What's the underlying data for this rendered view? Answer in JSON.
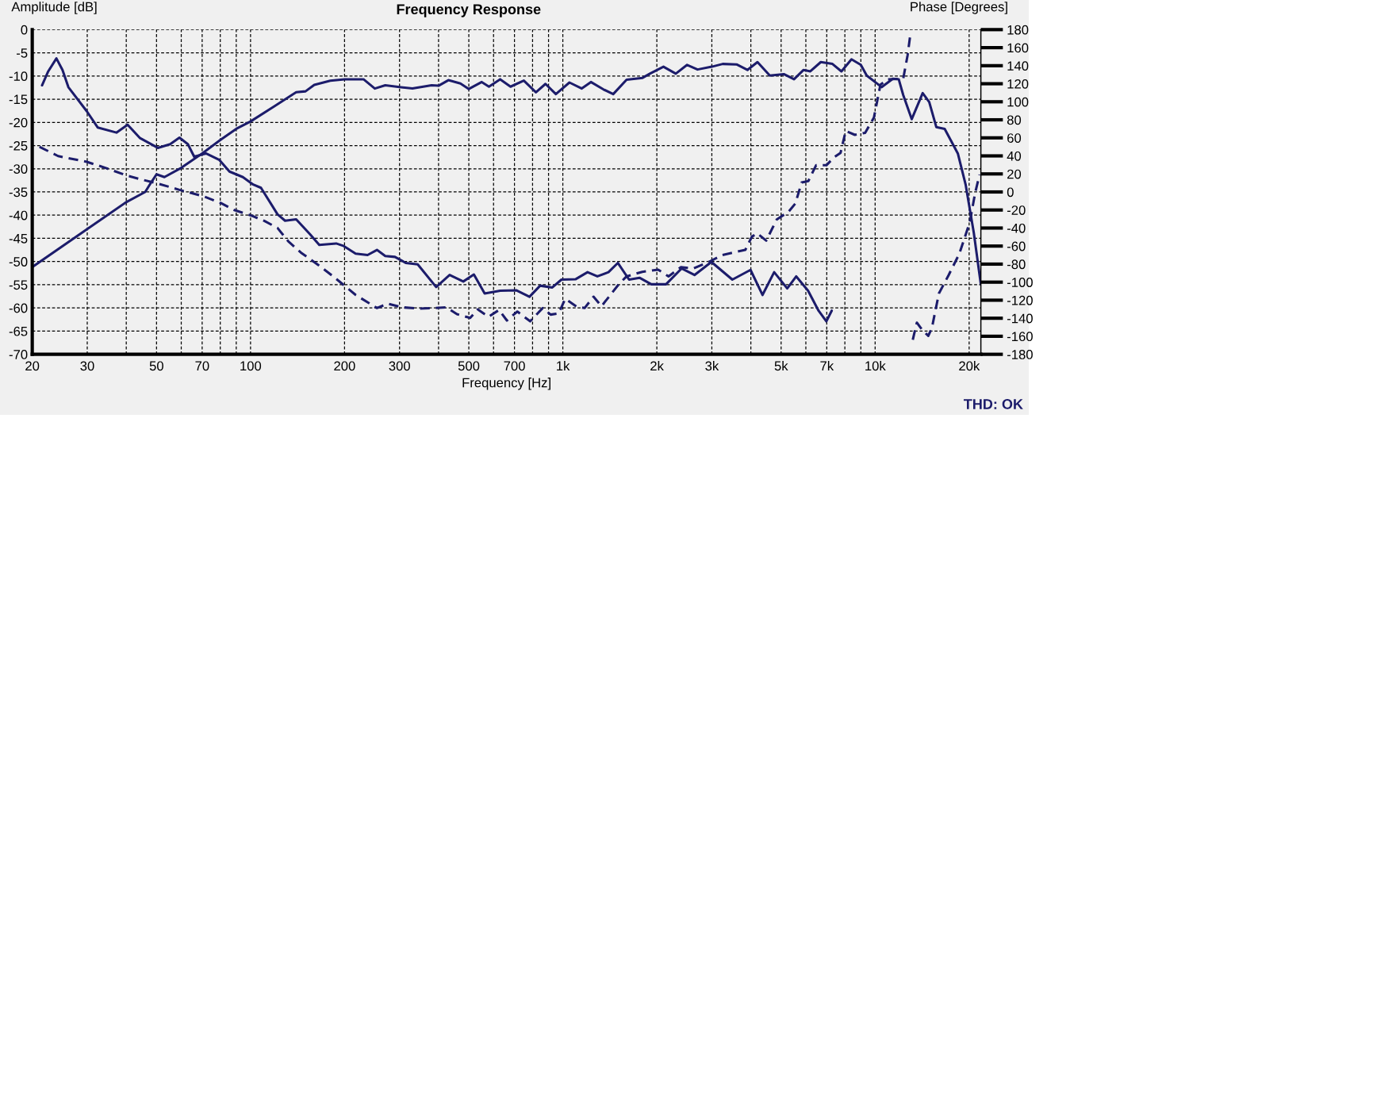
{
  "chart_data": {
    "type": "line",
    "title": "Frequency Response",
    "xlabel": "Frequency [Hz]",
    "ylabel": "Amplitude [dB]",
    "y2label": "Phase [Degrees]",
    "annotations": [
      "THD: OK"
    ],
    "log": "x",
    "grid": true,
    "xlim": [
      20,
      21800
    ],
    "xticks": [
      20,
      30,
      {
        "value": 40,
        "label": null
      },
      50,
      {
        "value": 60,
        "label": null
      },
      70,
      {
        "value": 80,
        "label": null
      },
      {
        "value": 90,
        "label": null
      },
      100,
      200,
      300,
      {
        "value": 400,
        "label": null
      },
      500,
      {
        "value": 600,
        "label": null
      },
      700,
      {
        "value": 800,
        "label": null
      },
      {
        "value": 900,
        "label": null
      },
      {
        "value": 1000,
        "label": "1k"
      },
      {
        "value": 2000,
        "label": "2k"
      },
      {
        "value": 3000,
        "label": "3k"
      },
      {
        "value": 4000,
        "label": null
      },
      {
        "value": 5000,
        "label": "5k"
      },
      {
        "value": 6000,
        "label": null
      },
      {
        "value": 7000,
        "label": "7k"
      },
      {
        "value": 8000,
        "label": null
      },
      {
        "value": 9000,
        "label": null
      },
      {
        "value": 10000,
        "label": "10k"
      },
      {
        "value": 20000,
        "label": "20k"
      }
    ],
    "ylim": [
      -70,
      0
    ],
    "yticks": [
      -70,
      -65,
      -60,
      -55,
      -50,
      -45,
      -40,
      -35,
      -30,
      -25,
      -20,
      -15,
      -10,
      -5,
      0
    ],
    "y2lim": [
      -180,
      180
    ],
    "y2ticks": [
      -180,
      -160,
      -140,
      -120,
      -100,
      -80,
      -60,
      -40,
      -20,
      0,
      20,
      40,
      60,
      80,
      100,
      120,
      140,
      160,
      180
    ],
    "series": [
      {
        "color": "#1c1c6b",
        "line_style": "solid",
        "x": [
          20,
          30,
          40,
          46,
          48,
          50,
          53,
          60,
          70,
          80,
          90,
          100,
          120,
          140,
          150,
          160,
          180,
          200,
          230,
          250,
          270,
          300,
          330,
          380,
          400,
          430,
          470,
          500,
          550,
          580,
          630,
          680,
          750,
          820,
          880,
          950,
          1050,
          1150,
          1230,
          1350,
          1450,
          1600,
          1800,
          1900,
          2100,
          2300,
          2500,
          2700,
          3000,
          3250,
          3600,
          3900,
          4200,
          4600,
          5100,
          5500,
          5900,
          6200,
          6700,
          7300,
          7800,
          8400,
          9000,
          9400,
          10500,
          11400,
          11900,
          12300,
          13100,
          14200,
          14900,
          15700,
          16700,
          18400,
          19500,
          20700,
          21800
        ],
        "values": [
          -51.2,
          -43,
          -37.2,
          -35,
          -33,
          -31.2,
          -31.8,
          -29.8,
          -26.7,
          -23.8,
          -21.4,
          -19.8,
          -16.4,
          -13.5,
          -13.3,
          -11.9,
          -11,
          -10.7,
          -10.7,
          -12.7,
          -12,
          -12.4,
          -12.7,
          -12,
          -12.1,
          -10.9,
          -11.6,
          -12.8,
          -11.3,
          -12.3,
          -10.7,
          -12.3,
          -11,
          -13.5,
          -11.7,
          -13.9,
          -11.4,
          -12.7,
          -11.3,
          -12.9,
          -13.9,
          -10.8,
          -10.4,
          -9.5,
          -8,
          -9.5,
          -7.6,
          -8.6,
          -8,
          -7.4,
          -7.5,
          -8.7,
          -7,
          -9.9,
          -9.6,
          -10.7,
          -8.7,
          -9,
          -7,
          -7.4,
          -9,
          -6.4,
          -7.6,
          -9.9,
          -12.4,
          -10.6,
          -10.7,
          -14.1,
          -19.3,
          -13.7,
          -15.6,
          -21,
          -21.4,
          -26.7,
          -33.5,
          -43.8,
          -54.9
        ]
      },
      {
        "color": "#1c1c6b",
        "line_style": "solid",
        "x": [
          21.5,
          22.5,
          23.9,
          25,
          26.1,
          29.9,
          32.4,
          37.2,
          40.4,
          44.3,
          50.5,
          55.3,
          59.2,
          63,
          66,
          72,
          79.5,
          85.6,
          94.5,
          102,
          108,
          122,
          129,
          140,
          155,
          166,
          188,
          198,
          217,
          237,
          254,
          270,
          290,
          314,
          343,
          393,
          434,
          480,
          519,
          562,
          630,
          709,
          782,
          846,
          925,
          990,
          1100,
          1200,
          1290,
          1400,
          1500,
          1630,
          1760,
          1920,
          2140,
          2400,
          2640,
          2990,
          3490,
          3990,
          4360,
          4750,
          5230,
          5590,
          6100,
          6590,
          6980,
          7260
        ],
        "values": [
          -12,
          -9,
          -6.2,
          -8.7,
          -12.4,
          -17.6,
          -21.1,
          -22.2,
          -20.5,
          -23.4,
          -25.5,
          -24.7,
          -23.3,
          -24.7,
          -27.4,
          -26.7,
          -28.1,
          -30.6,
          -31.8,
          -33.4,
          -34.1,
          -39.8,
          -41.2,
          -40.9,
          -44.1,
          -46.4,
          -46.1,
          -46.6,
          -48.3,
          -48.6,
          -47.5,
          -48.8,
          -49,
          -50.3,
          -50.6,
          -55.5,
          -52.9,
          -54.3,
          -52.8,
          -56.9,
          -56.3,
          -56.2,
          -57.6,
          -55.2,
          -55.6,
          -53.9,
          -53.8,
          -52.3,
          -53.2,
          -52.3,
          -50.3,
          -53.9,
          -53.5,
          -54.9,
          -54.9,
          -51.5,
          -52.9,
          -50.1,
          -53.9,
          -51.8,
          -57.2,
          -52.3,
          -55.8,
          -53.2,
          -56.3,
          -60.6,
          -62.9,
          -60.6
        ]
      },
      {
        "color": "#1c1c6b",
        "line_style": "dashed",
        "axis": "y2",
        "x": [
          21.1,
          24.2,
          29.9,
          34.3,
          40.4,
          45.1,
          50.8,
          59.2,
          70.6,
          80.3,
          89.1,
          100.5,
          110.6,
          122,
          132,
          145,
          164,
          184,
          217,
          254,
          275,
          305,
          349,
          385,
          423,
          458,
          505,
          534,
          578,
          625,
          662,
          715,
          786,
          862,
          914,
          970,
          1018,
          1108,
          1174,
          1254,
          1330,
          1420,
          1510,
          1600,
          1796,
          2020,
          2180,
          2390,
          2620,
          2940,
          3230,
          3840,
          4030,
          4190,
          4480,
          4840,
          5290,
          5550,
          5820,
          6110,
          6470,
          6980,
          7390,
          7750,
          8050,
          8610,
          9290,
          9910,
          10400,
          11000,
          12300,
          12700,
          13000,
          13100,
          13200,
          13600,
          14200,
          14800,
          15200,
          16000,
          17200,
          18600,
          20100,
          20900,
          21600
        ],
        "values": [
          50.1,
          39.8,
          33.4,
          26.7,
          17.9,
          13.5,
          9.1,
          2.3,
          -4.7,
          -12.3,
          -20.3,
          -26.1,
          -32,
          -39.9,
          -54.6,
          -67.2,
          -80.4,
          -93.6,
          -114.1,
          -128.7,
          -123.8,
          -127.9,
          -129.3,
          -128.7,
          -127.9,
          -135.5,
          -139.6,
          -130.2,
          -138.5,
          -130.8,
          -142.5,
          -132.6,
          -143.4,
          -128.7,
          -136,
          -134.6,
          -118.5,
          -127.3,
          -128.7,
          -116.1,
          -126.7,
          -114.1,
          -102.4,
          -93.6,
          -88.6,
          -86.2,
          -93.6,
          -83.3,
          -84.8,
          -77.4,
          -70.1,
          -64.2,
          -49.6,
          -45.8,
          -54,
          -30.5,
          -21.7,
          -12.9,
          10.5,
          12,
          29.6,
          29.6,
          38.4,
          43.4,
          67.7,
          63.3,
          65.6,
          82.4,
          119,
          124.9,
          125.5,
          151.3,
          177.7,
          null,
          -163.9,
          -144.9,
          -153.7,
          -159.5,
          -150.7,
          -112.6,
          -92.1,
          -68.6,
          -33.5,
          -1.2,
          19.3
        ]
      }
    ]
  }
}
